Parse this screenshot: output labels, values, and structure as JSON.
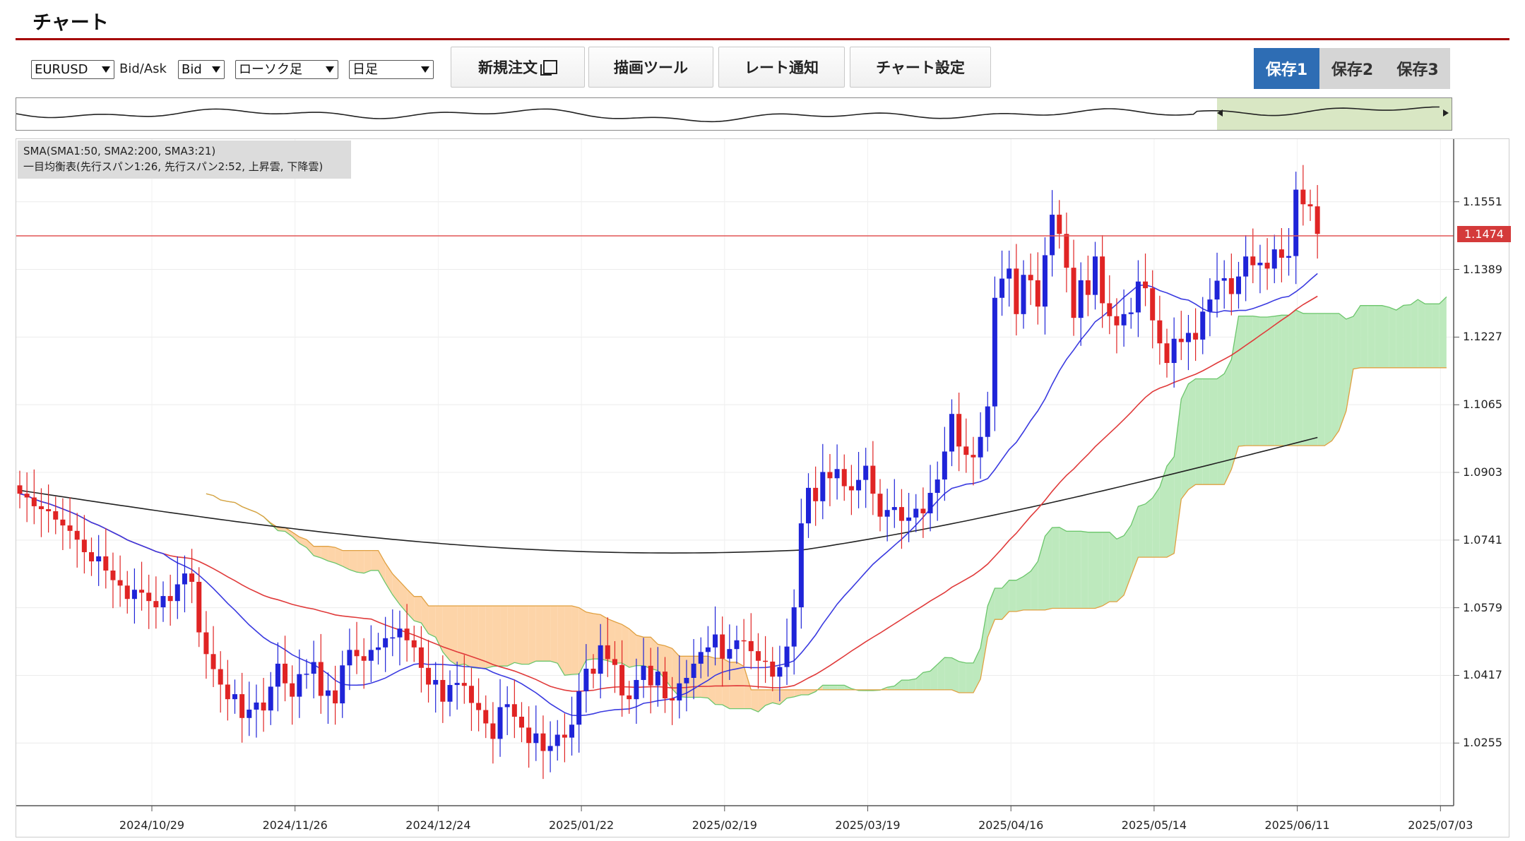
{
  "page": {
    "title": "チャート"
  },
  "toolbar": {
    "symbol": "EURUSD",
    "bidask_label": "Bid/Ask",
    "bidask_value": "Bid",
    "chart_type": "ローソク足",
    "timeframe": "日足",
    "new_order": "新規注文",
    "drawing_tools": "描画ツール",
    "rate_alert": "レート通知",
    "chart_settings": "チャート設定",
    "save1": "保存1",
    "save2": "保存2",
    "save3": "保存3"
  },
  "colors": {
    "accent": "#a40000",
    "save_active": "#2e6db4",
    "bull": "#1f24d8",
    "bear": "#e02424",
    "cloud_up": "#bde9bd",
    "cloud_down": "#fdd4a8"
  },
  "legend": {
    "line1": "SMA(SMA1:50, SMA2:200, SMA3:21)",
    "line2": "一目均衡表(先行スパン1:26, 先行スパン2:52, 上昇雲, 下降雲)"
  },
  "chart_data": {
    "type": "candlestick",
    "symbol": "EURUSD",
    "timeframe": "日足",
    "current_price": "1.1474",
    "y_ticks": [
      "1.1551",
      "1.1389",
      "1.1227",
      "1.1065",
      "1.0903",
      "1.0741",
      "1.0579",
      "1.0417",
      "1.0255"
    ],
    "ylim": [
      1.0105,
      1.1701
    ],
    "x_ticks": [
      "2024/10/29",
      "2024/11/26",
      "2024/12/24",
      "2025/01/22",
      "2025/02/19",
      "2025/03/19",
      "2025/04/16",
      "2025/05/14",
      "2025/06/11",
      "2025/07/03"
    ],
    "closes": [
      1.0852,
      1.0843,
      1.0822,
      1.0815,
      1.081,
      1.079,
      1.0776,
      1.0763,
      1.0742,
      1.0712,
      1.069,
      1.0702,
      1.0668,
      1.0645,
      1.0632,
      1.06,
      1.0622,
      1.0615,
      1.0595,
      1.058,
      1.0607,
      1.0595,
      1.0635,
      1.0661,
      1.0641,
      1.052,
      1.0468,
      1.0432,
      1.0395,
      1.036,
      1.0372,
      1.0315,
      1.0335,
      1.0352,
      1.0333,
      1.039,
      1.0445,
      1.0398,
      1.0366,
      1.042,
      1.0421,
      1.0449,
      1.0368,
      1.0381,
      1.035,
      1.0441,
      1.0478,
      1.0463,
      1.0452,
      1.0478,
      1.0484,
      1.0506,
      1.0508,
      1.0529,
      1.0501,
      1.0484,
      1.0435,
      1.0395,
      1.0406,
      1.0354,
      1.0394,
      1.0399,
      1.0392,
      1.0351,
      1.0334,
      1.0302,
      1.0265,
      1.0341,
      1.0348,
      1.0318,
      1.0292,
      1.0255,
      1.0278,
      1.0236,
      1.0248,
      1.0275,
      1.0268,
      1.0299,
      1.0379,
      1.0433,
      1.0421,
      1.0489,
      1.0456,
      1.0442,
      1.0369,
      1.036,
      1.0406,
      1.044,
      1.0393,
      1.0426,
      1.0362,
      1.0357,
      1.0398,
      1.0411,
      1.0445,
      1.0473,
      1.0484,
      1.0515,
      1.0457,
      1.048,
      1.0501,
      1.0499,
      1.0475,
      1.0452,
      1.045,
      1.0414,
      1.0437,
      1.0486,
      1.058,
      1.0781,
      1.0866,
      1.0834,
      1.0904,
      1.0889,
      1.0911,
      1.087,
      1.086,
      1.0885,
      1.0919,
      1.0852,
      1.0797,
      1.0813,
      1.082,
      1.0787,
      1.0795,
      1.0816,
      1.0805,
      1.0854,
      1.0886,
      1.0953,
      1.1043,
      1.0965,
      1.0945,
      1.0939,
      1.0988,
      1.1061,
      1.1321,
      1.1367,
      1.1391,
      1.1282,
      1.1376,
      1.1363,
      1.13,
      1.1423,
      1.152,
      1.1474,
      1.1393,
      1.1273,
      1.1363,
      1.1328,
      1.142,
      1.1308,
      1.1277,
      1.1255,
      1.1282,
      1.1286,
      1.136,
      1.1344,
      1.1267,
      1.1212,
      1.1165,
      1.1223,
      1.1215,
      1.1237,
      1.1221,
      1.1288,
      1.1317,
      1.1362,
      1.1368,
      1.133,
      1.1372,
      1.142,
      1.1399,
      1.1405,
      1.1391,
      1.1437,
      1.1417,
      1.1421,
      1.158,
      1.1545,
      1.154,
      1.1474
    ]
  }
}
